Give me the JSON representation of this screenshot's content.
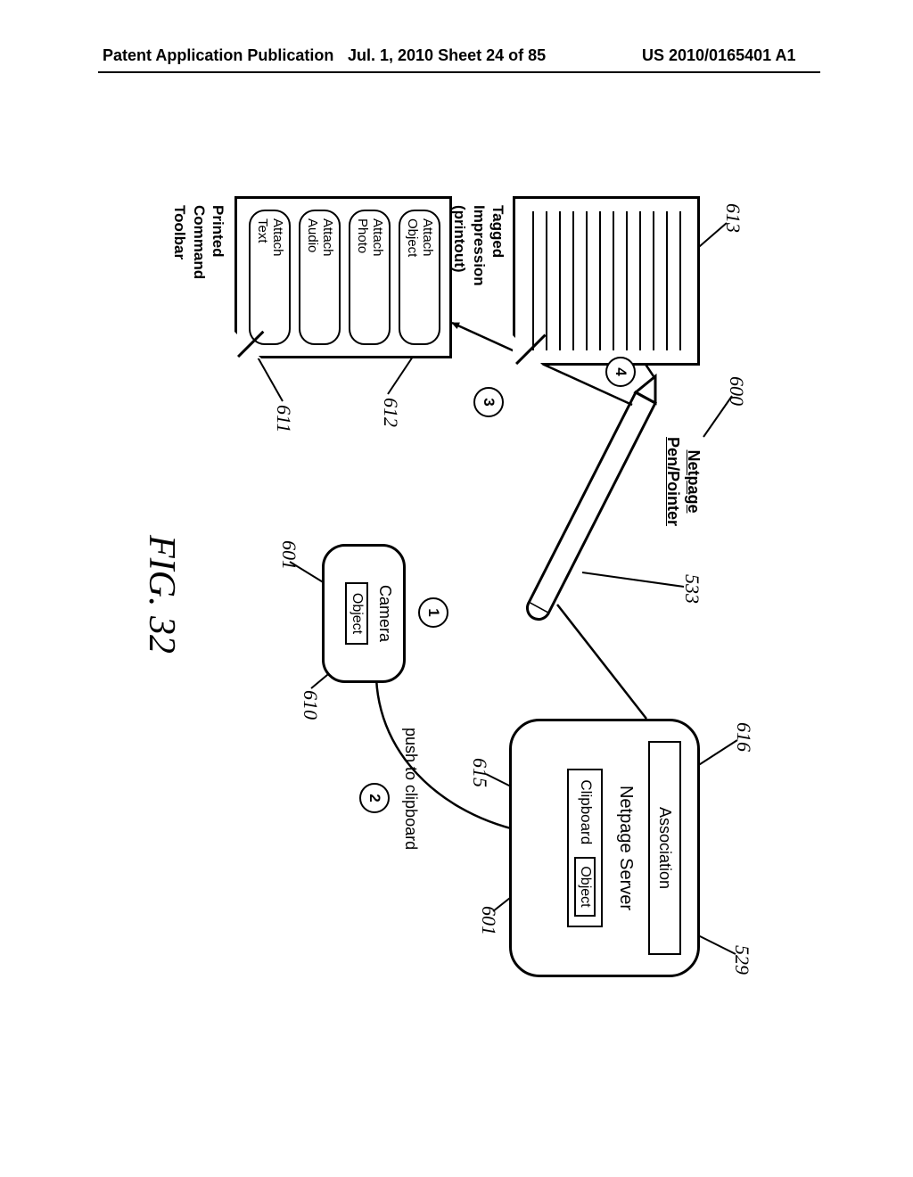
{
  "header": {
    "left": "Patent Application Publication",
    "center": "Jul. 1, 2010  Sheet 24 of 85",
    "right": "US 2010/0165401 A1"
  },
  "figure_label": "FIG. 32",
  "printout": {
    "ref": "613",
    "caption_l1": "Tagged",
    "caption_l2": "Impression",
    "caption_l3": "(printout)",
    "line_count": 12
  },
  "toolbar": {
    "ref": "611",
    "caption_l1": "Printed",
    "caption_l2": "Command",
    "caption_l3": "Toolbar",
    "items": [
      {
        "l1": "Attach",
        "l2": "Object"
      },
      {
        "l1": "Attach",
        "l2": "Photo"
      },
      {
        "l1": "Attach",
        "l2": "Audio"
      },
      {
        "l1": "Attach",
        "l2": "Text"
      }
    ],
    "item_ref": "612"
  },
  "pen": {
    "ref_label": "600",
    "ref_pen": "533",
    "label_l1": "Netpage",
    "label_l2": "Pen/Pointer"
  },
  "camera": {
    "ref_box": "610",
    "ref_object": "601",
    "title": "Camera",
    "object_label": "Object"
  },
  "server": {
    "ref_box": "529",
    "ref_assoc": "616",
    "ref_clip": "615",
    "ref_object": "601",
    "assoc_label": "Association",
    "title": "Netpage Server",
    "clipboard_label": "Clipboard",
    "object_label": "Object"
  },
  "edges": {
    "push_label": "push to clipboard"
  },
  "steps": {
    "s1": "1",
    "s2": "2",
    "s3": "3",
    "s4": "4"
  },
  "colors": {
    "stroke": "#000000",
    "bg": "#ffffff"
  }
}
